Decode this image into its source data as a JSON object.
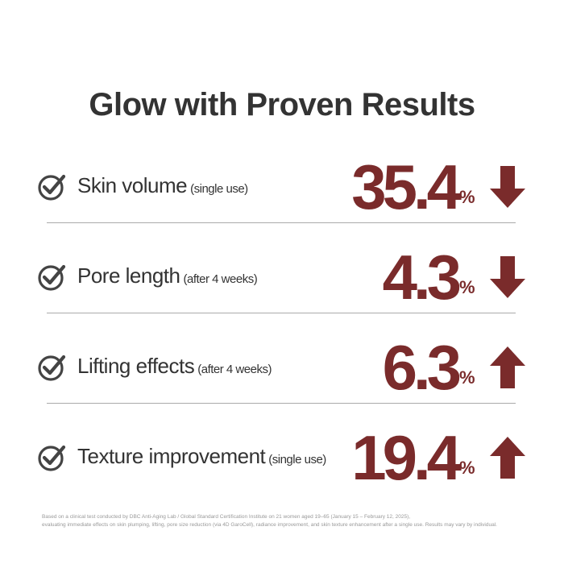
{
  "title": "Glow with Proven Results",
  "results": [
    {
      "label": "Skin volume",
      "note": "(single use)",
      "value": 35.4,
      "unit": "%",
      "direction": "down"
    },
    {
      "label": "Pore length",
      "note": "(after 4 weeks)",
      "value": 4.3,
      "unit": "%",
      "direction": "down"
    },
    {
      "label": "Lifting effects",
      "note": "(after 4 weeks)",
      "value": 6.3,
      "unit": "%",
      "direction": "up"
    },
    {
      "label": "Texture improvement",
      "note": "(single use)",
      "value": 19.4,
      "unit": "%",
      "direction": "up"
    }
  ],
  "footnote": [
    "Based on a clinical test conducted by DBC Anti-Aging Lab / Global Standard Certification Institute on 21 women aged 19–65 (January 15 – February 12, 2025),",
    "evaluating immediate effects on skin plumping, lifting, pore size reduction (via 4D GaroCell), radiance improvement, and skin texture enhancement after a single use. Results may vary by individual."
  ]
}
